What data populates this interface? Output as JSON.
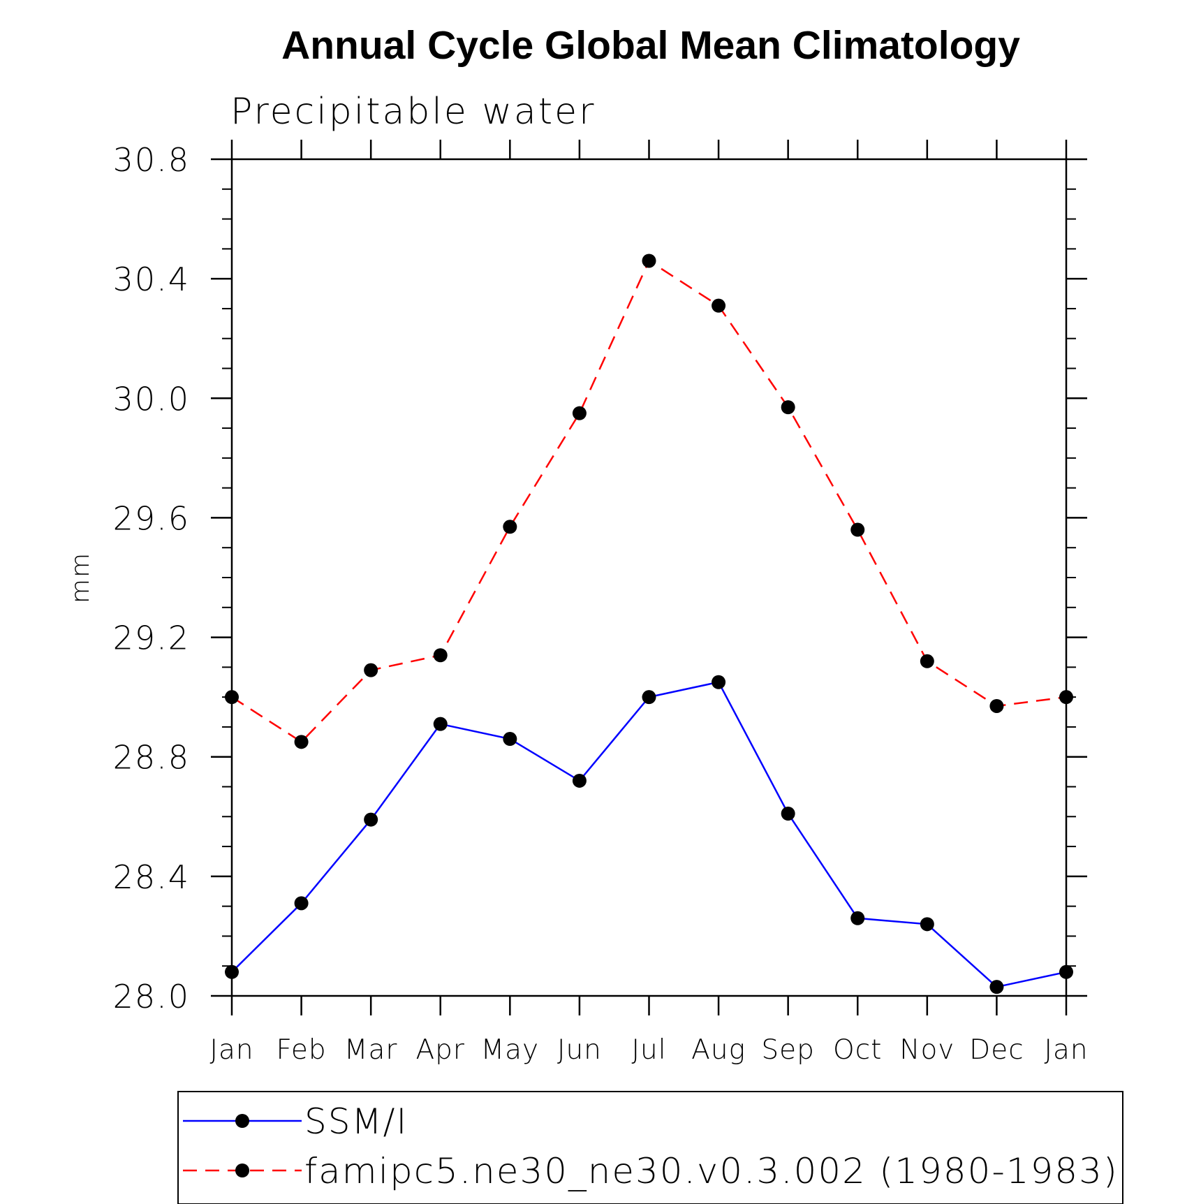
{
  "chart_data": {
    "type": "line",
    "title": "Annual Cycle Global Mean Climatology",
    "subtitle": "Precipitable water",
    "xlabel": "",
    "ylabel": "mm",
    "categories": [
      "Jan",
      "Feb",
      "Mar",
      "Apr",
      "May",
      "Jun",
      "Jul",
      "Aug",
      "Sep",
      "Oct",
      "Nov",
      "Dec",
      "Jan"
    ],
    "ylim": [
      28.0,
      30.8
    ],
    "yticks": [
      "28.0",
      "28.4",
      "28.8",
      "29.2",
      "29.6",
      "30.0",
      "30.4",
      "30.8"
    ],
    "ytick_values": [
      28.0,
      28.4,
      28.8,
      29.2,
      29.6,
      30.0,
      30.4,
      30.8
    ],
    "legend_position": "bottom",
    "series": [
      {
        "name": "SSM/I",
        "color": "#0000ff",
        "line_style": "solid",
        "marker": "filled-circle",
        "values": [
          28.08,
          28.31,
          28.59,
          28.91,
          28.86,
          28.72,
          29.0,
          29.05,
          28.61,
          28.26,
          28.24,
          28.03,
          28.08
        ]
      },
      {
        "name": "famipc5.ne30_ne30.v0.3.002 (1980-1983)",
        "color": "#ff0000",
        "line_style": "dashed",
        "marker": "filled-circle",
        "values": [
          29.0,
          28.85,
          29.09,
          29.14,
          29.57,
          29.95,
          30.46,
          30.31,
          29.97,
          29.56,
          29.12,
          28.97,
          29.0
        ]
      }
    ]
  }
}
